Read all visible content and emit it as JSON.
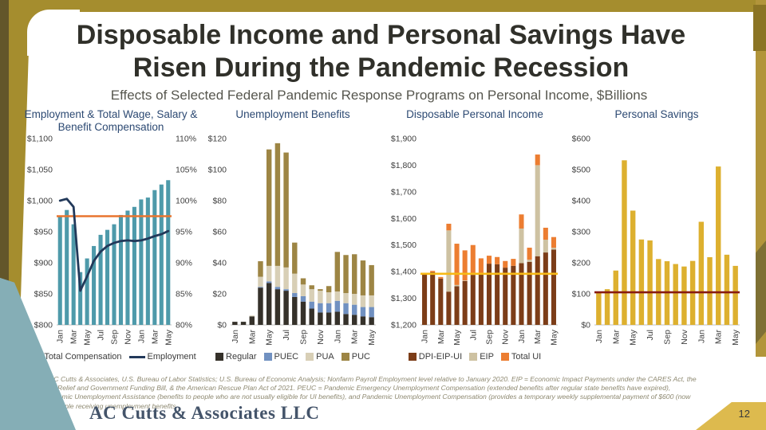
{
  "slide": {
    "title": "Disposable Income and Personal Savings Have Risen During the Pandemic Recession",
    "subtitle": "Effects of Selected Federal Pandemic Response Programs on Personal Income, $Billions",
    "source_note": "Source: AC Cutts & Associates, U.S. Bureau of Labor Statistics; U.S. Bureau of Economic Analysis; Nonfarm Payroll Employment level relative to January 2020. EIP = Economic Impact Payments under the CARES Act, the COVID-19 Relief and Government Funding Bill, & the American Rescue Plan Act of 2021. PEUC = Pandemic Emergency Unemployment Compensation (extended benefits after regular state benefits have expired), PUA=Pandemic Unemployment Assistance (benefits to people who are not usually eligible for UI benefits), and Pandemic Unemployment Compensation (provides a temporary weekly supplemental payment of $600 (now $300) for people receiving unemployment benefits",
    "logo_text": "AC Cutts & Associates LLC",
    "page_number": "12"
  },
  "colors": {
    "accent_gold": "#a58d2e",
    "accent_teal": "#85aeb6",
    "chart_title_blue": "#2d4a73"
  },
  "chart_data": [
    {
      "type": "bar",
      "title": "Employment & Total Wage, Salary & Benefit Compensation",
      "categories": [
        "Jan",
        "Feb",
        "Mar",
        "Apr",
        "May",
        "Jun",
        "Jul",
        "Aug",
        "Sep",
        "Oct",
        "Nov",
        "Dec",
        "Jan",
        "Feb",
        "Mar",
        "Apr",
        "May"
      ],
      "tick_interval": 2,
      "left_axis": {
        "min": 800,
        "max": 1100,
        "step": 50,
        "unit": "dollar"
      },
      "right_axis": {
        "min": 80,
        "max": 110,
        "step": 5,
        "unit": "percent"
      },
      "legend_style": "bar",
      "series": [
        {
          "name": "Total Compensation",
          "type": "bar",
          "axis": "left",
          "color": "#4e9aaa",
          "values": [
            975,
            985,
            962,
            885,
            907,
            927,
            945,
            953,
            962,
            977,
            984,
            990,
            1002,
            1005,
            1017,
            1026,
            1033
          ]
        },
        {
          "name": "Employment",
          "type": "line",
          "axis": "right",
          "color": "#22395a",
          "values": [
            100,
            100.3,
            99,
            85.5,
            87.8,
            90.3,
            91.8,
            92.7,
            93.2,
            93.5,
            93.6,
            93.5,
            93.6,
            93.9,
            94.3,
            94.6,
            95.1
          ]
        }
      ],
      "ref_line": {
        "value": 97.5,
        "axis": "right",
        "color": "#e9752f"
      },
      "grid": false,
      "legend_position": "bottom"
    },
    {
      "type": "bar",
      "stacked": true,
      "title": "Unemployment Benefits",
      "categories": [
        "Jan",
        "Feb",
        "Mar",
        "Apr",
        "May",
        "Jun",
        "Jul",
        "Aug",
        "Sep",
        "Oct",
        "Nov",
        "Dec",
        "Jan",
        "Feb",
        "Mar",
        "Apr",
        "May"
      ],
      "tick_interval": 2,
      "left_axis": {
        "min": 0,
        "max": 120,
        "step": 20,
        "unit": "dollar"
      },
      "series": [
        {
          "name": "Regular",
          "type": "bar",
          "color": "#35312a",
          "values": [
            2,
            2,
            5.5,
            24,
            27,
            23,
            22,
            18,
            15,
            10.5,
            8,
            8,
            8.5,
            7,
            6.5,
            5.5,
            5
          ]
        },
        {
          "name": "PUEC",
          "type": "bar",
          "color": "#7191c1",
          "values": [
            0,
            0,
            0,
            0.5,
            1,
            1.5,
            1,
            2.5,
            3.5,
            4.5,
            6,
            6,
            7,
            7,
            6.5,
            6,
            6.5
          ]
        },
        {
          "name": "PUA",
          "type": "bar",
          "color": "#d8cfb6",
          "values": [
            0,
            0,
            0.5,
            6.5,
            10,
            13.5,
            14,
            12.5,
            7.5,
            8,
            8,
            7,
            6,
            6.5,
            7,
            7.5,
            7.5
          ]
        },
        {
          "name": "PUC",
          "type": "bar",
          "color": "#9d8544",
          "values": [
            0,
            0,
            0,
            10,
            75,
            79,
            74,
            20,
            4,
            2.5,
            1,
            4,
            25.5,
            24.5,
            25.5,
            22.5,
            19.5
          ]
        }
      ],
      "grid": false,
      "legend_position": "bottom"
    },
    {
      "type": "bar",
      "stacked": true,
      "title": "Disposable Personal Income",
      "categories": [
        "Jan",
        "Feb",
        "Mar",
        "Apr",
        "May",
        "Jun",
        "Jul",
        "Aug",
        "Sep",
        "Oct",
        "Nov",
        "Dec",
        "Jan",
        "Feb",
        "Mar",
        "Apr",
        "May"
      ],
      "tick_interval": 2,
      "left_axis": {
        "min": 1200,
        "max": 1900,
        "step": 100,
        "unit": "dollar"
      },
      "series": [
        {
          "name": "DPI-EIP-UI",
          "type": "bar",
          "color": "#7c3d18",
          "values": [
            1390,
            1398,
            1374,
            1325,
            1345,
            1365,
            1388,
            1395,
            1430,
            1428,
            1415,
            1422,
            1432,
            1437,
            1458,
            1472,
            1483
          ]
        },
        {
          "name": "EIP",
          "type": "bar",
          "color": "#cec2a2",
          "values": [
            0,
            0,
            0,
            230,
            5,
            2,
            0,
            0,
            0,
            0,
            0,
            0,
            130,
            8,
            342,
            48,
            7
          ]
        },
        {
          "name": "Total UI",
          "type": "bar",
          "color": "#ec7d31",
          "values": [
            0,
            5,
            6,
            25,
            155,
            113,
            112,
            55,
            30,
            27,
            25,
            26,
            53,
            45,
            40,
            45,
            40
          ]
        }
      ],
      "ref_line": {
        "value": 1392,
        "axis": "left",
        "color": "#f7b916"
      },
      "grid": false,
      "legend_position": "bottom"
    },
    {
      "type": "bar",
      "title": "Personal Savings",
      "categories": [
        "Jan",
        "Feb",
        "Mar",
        "Apr",
        "May",
        "Jun",
        "Jul",
        "Aug",
        "Sep",
        "Oct",
        "Nov",
        "Dec",
        "Jan",
        "Feb",
        "Mar",
        "Apr",
        "May"
      ],
      "tick_interval": 2,
      "left_axis": {
        "min": 0,
        "max": 600,
        "step": 100,
        "unit": "dollar"
      },
      "show_legend": false,
      "series": [
        {
          "name": "Personal Savings",
          "type": "bar",
          "color": "#ddb02f",
          "values": [
            105,
            115,
            175,
            530,
            368,
            275,
            272,
            212,
            205,
            196,
            188,
            206,
            332,
            218,
            510,
            226,
            190
          ]
        }
      ],
      "ref_line": {
        "value": 105,
        "axis": "left",
        "color": "#871b10"
      },
      "grid": false,
      "legend_position": "none"
    }
  ]
}
